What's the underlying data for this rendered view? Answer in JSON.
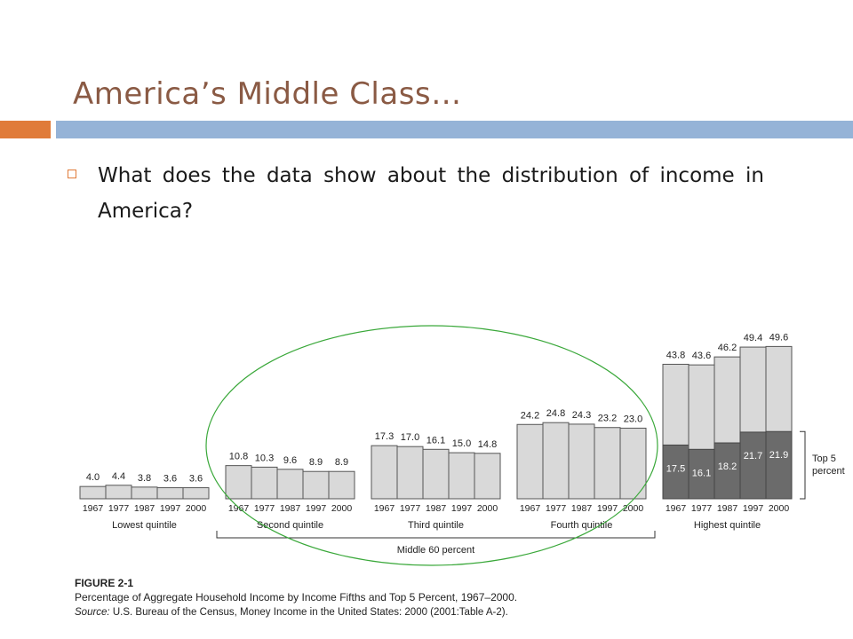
{
  "slide": {
    "title": "America’s Middle Class…",
    "bullet": "What does the data show about the distribution of income in America?"
  },
  "colors": {
    "title": "#8a5a44",
    "accent": "#e07b39",
    "rule": "#95b3d7",
    "bar_light": "#d9d9d9",
    "bar_dark": "#6b6b6b",
    "circle": "#3aa83a"
  },
  "chart_data": {
    "type": "bar",
    "title": "Percentage of Aggregate Household Income by Income Fifths and Top 5 Percent, 1967–2000.",
    "figure_label": "FIGURE 2-1",
    "source_prefix": "Source:",
    "source_text": "U.S. Bureau of the Census, Money Income in the United States: 2000 (2001:Table A-2).",
    "years": [
      "1967",
      "1977",
      "1987",
      "1997",
      "2000"
    ],
    "groups": [
      {
        "name": "Lowest quintile",
        "values": [
          4.0,
          4.4,
          3.8,
          3.6,
          3.6
        ]
      },
      {
        "name": "Second quintile",
        "values": [
          10.8,
          10.3,
          9.6,
          8.9,
          8.9
        ]
      },
      {
        "name": "Third quintile",
        "values": [
          17.3,
          17.0,
          16.1,
          15.0,
          14.8
        ]
      },
      {
        "name": "Fourth quintile",
        "values": [
          24.2,
          24.8,
          24.3,
          23.2,
          23.0
        ]
      },
      {
        "name": "Highest quintile",
        "values": [
          43.8,
          43.6,
          46.2,
          49.4,
          49.6
        ]
      }
    ],
    "top5": {
      "name": "Top 5 percent",
      "values": [
        17.5,
        16.1,
        18.2,
        21.7,
        21.9
      ]
    },
    "bracket_label": "Middle 60 percent",
    "annotation": "Highlighted middle 60 percent"
  }
}
